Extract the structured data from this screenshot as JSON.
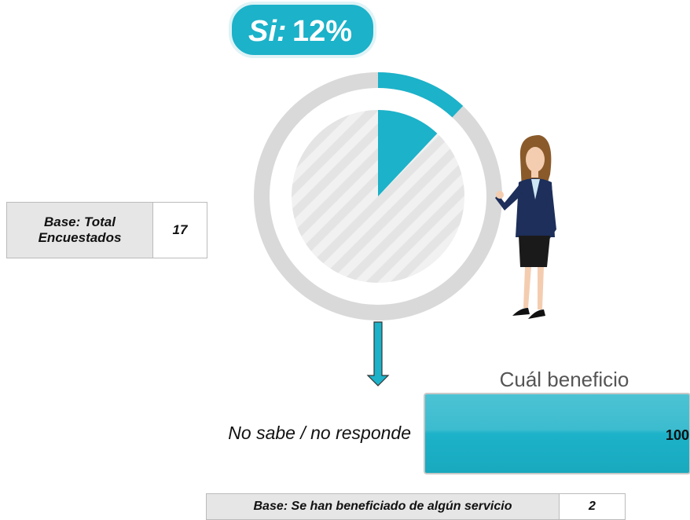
{
  "chart_data": [
    {
      "type": "donut",
      "categories": [
        "Si:"
      ],
      "values": [
        12
      ],
      "value_labels": [
        "12%"
      ],
      "color": "#1cb2c9",
      "base": {
        "label": "Base: Total Encuestados",
        "value": 17
      }
    },
    {
      "type": "bar",
      "title": "Cuál beneficio",
      "categories": [
        "No sabe / no responde"
      ],
      "values": [
        100
      ],
      "color": "#1cb2c9",
      "base": {
        "label": "Base: Se han beneficiado de algún servicio",
        "value": 2
      }
    }
  ]
}
